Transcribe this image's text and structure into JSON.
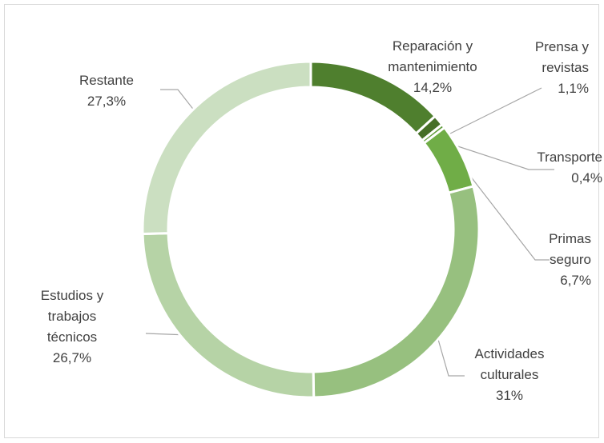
{
  "chart_data": {
    "type": "donut",
    "categories": [
      "Reparación y mantenimiento",
      "Prensa y revistas",
      "Transporte",
      "Primas seguro",
      "Actividades culturales",
      "Estudios y trabajos técnicos",
      "Restante"
    ],
    "values": [
      14.2,
      1.1,
      0.4,
      6.7,
      31,
      26.7,
      27.3
    ],
    "value_labels": [
      "14,2%",
      "1,1%",
      "0,4%",
      "6,7%",
      "31%",
      "26,7%",
      "27,3%"
    ],
    "colors": [
      "#4f7f2e",
      "#466f27",
      "#5e9a38",
      "#70ad47",
      "#97c07f",
      "#b6d3a6",
      "#cbdfc1"
    ]
  }
}
